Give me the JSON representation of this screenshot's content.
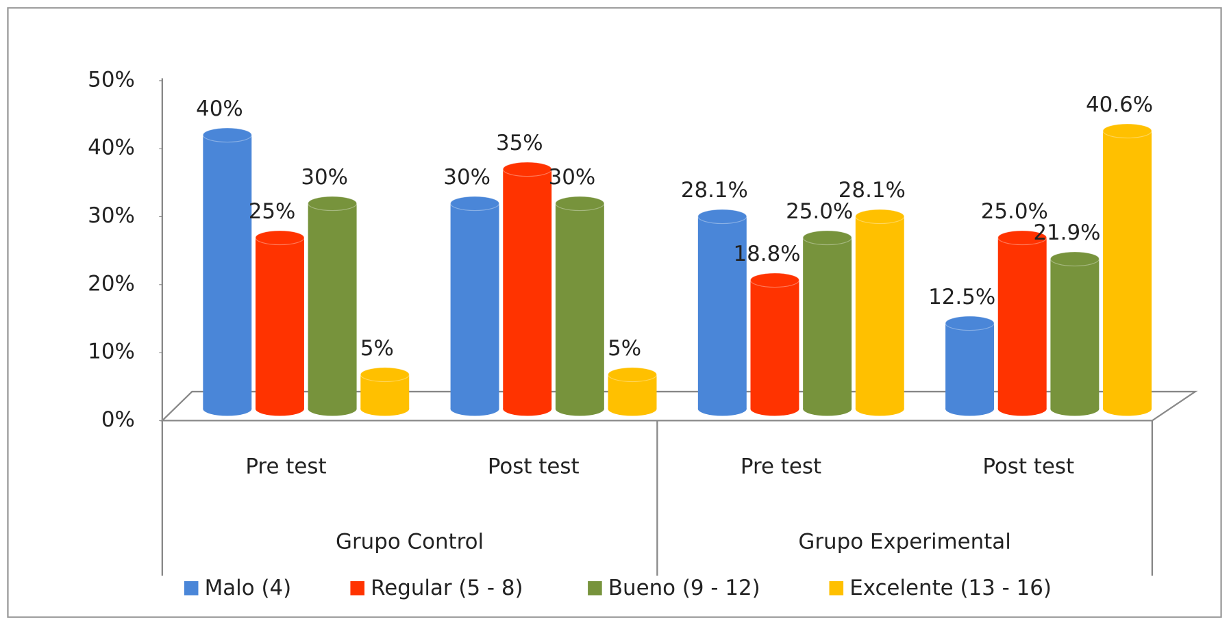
{
  "chart_data": {
    "type": "bar3d",
    "groups": [
      {
        "label": "Grupo Control",
        "categories": [
          "Pre test",
          "Post test"
        ]
      },
      {
        "label": "Grupo Experimental",
        "categories": [
          "Pre test",
          "Post test"
        ]
      }
    ],
    "series": [
      {
        "name": "Malo (4)",
        "color": "#4a86d8",
        "values": [
          40,
          30,
          28.1,
          12.5
        ],
        "value_labels": [
          "40%",
          "30%",
          "28.1%",
          "12.5%"
        ]
      },
      {
        "name": "Regular (5 - 8)",
        "color": "#ff3300",
        "values": [
          25,
          35,
          18.8,
          25.0
        ],
        "value_labels": [
          "25%",
          "35%",
          "18.8%",
          "25.0%"
        ]
      },
      {
        "name": "Bueno (9 - 12)",
        "color": "#77933c",
        "values": [
          30,
          30,
          25.0,
          21.9
        ],
        "value_labels": [
          "30%",
          "30%",
          "25.0%",
          "21.9%"
        ]
      },
      {
        "name": "Excelente (13 - 16)",
        "color": "#ffc000",
        "values": [
          5,
          5,
          28.1,
          40.6
        ],
        "value_labels": [
          "5%",
          "5%",
          "28.1%",
          "40.6%"
        ]
      }
    ],
    "ylim": [
      0,
      50
    ],
    "yticks": [
      {
        "value": 0,
        "label": "0%"
      },
      {
        "value": 10,
        "label": "10%"
      },
      {
        "value": 20,
        "label": "20%"
      },
      {
        "value": 30,
        "label": "30%"
      },
      {
        "value": 40,
        "label": "40%"
      },
      {
        "value": 50,
        "label": "50%"
      }
    ],
    "legend": "bottom"
  }
}
